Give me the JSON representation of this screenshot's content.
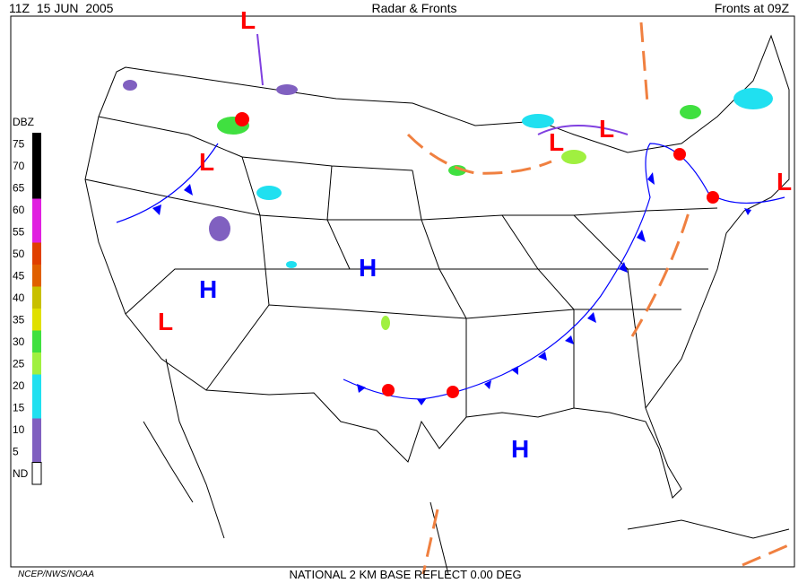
{
  "header": {
    "left": "11Z  15 JUN  2005",
    "center": "Radar & Fronts",
    "right": "Fronts at 09Z"
  },
  "legend": {
    "title": "DBZ",
    "levels": [
      {
        "label": "75",
        "color": "#000000"
      },
      {
        "label": "70",
        "color": "#000000"
      },
      {
        "label": "65",
        "color": "#000000"
      },
      {
        "label": "60",
        "color": "#e020e0"
      },
      {
        "label": "55",
        "color": "#e020e0"
      },
      {
        "label": "50",
        "color": "#e04000"
      },
      {
        "label": "45",
        "color": "#e06000"
      },
      {
        "label": "40",
        "color": "#c8c000"
      },
      {
        "label": "35",
        "color": "#e0e000"
      },
      {
        "label": "30",
        "color": "#40e040"
      },
      {
        "label": "25",
        "color": "#a0f040"
      },
      {
        "label": "20",
        "color": "#20e0f0"
      },
      {
        "label": "15",
        "color": "#20e0f0"
      },
      {
        "label": "10",
        "color": "#8060c0"
      },
      {
        "label": "5",
        "color": "#8060c0"
      },
      {
        "label": "ND",
        "color": "#ffffff"
      }
    ]
  },
  "pressure_centers": [
    {
      "label": "L",
      "color": "#ff0000"
    },
    {
      "label": "L",
      "color": "#ff0000"
    },
    {
      "label": "L",
      "color": "#ff0000"
    },
    {
      "label": "L",
      "color": "#ff0000"
    },
    {
      "label": "L",
      "color": "#ff0000"
    },
    {
      "label": "L",
      "color": "#ff0000"
    },
    {
      "label": "H",
      "color": "#0000ff"
    },
    {
      "label": "H",
      "color": "#0000ff"
    },
    {
      "label": "H",
      "color": "#0000ff"
    }
  ],
  "footer": {
    "left": "NCEP/NWS/NOAA",
    "center": "NATIONAL 2 KM BASE REFLECT 0.00 DEG"
  }
}
